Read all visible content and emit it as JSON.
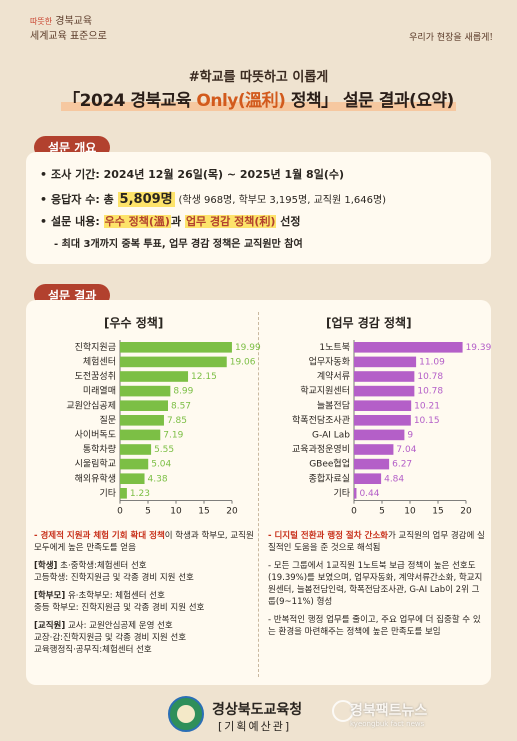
{
  "header": {
    "slogan_left_prefix": "따뜻한",
    "slogan_left_line1": "경북교육",
    "slogan_left_line2": "세계교육 표준으로",
    "slogan_right": "우리가 현장을 새롭게!",
    "subtitle": "#학교를 따뜻하고 이롭게",
    "title_open": "「2024 경북교육 ",
    "title_accent": "Only(溫利)",
    "title_rest": " 정책」 설문 결과(요약)"
  },
  "overview": {
    "label": "설문 개요",
    "period_label": "조사 기간:",
    "period_value": "2024년 12월 26일(목) ~ 2025년 1월 8일(수)",
    "respondents_label": "응답자 수: 총",
    "respondents_total": "5,809명",
    "respondents_detail": "(학생 968명, 학부모 3,195명, 교직원 1,646명)",
    "content_label": "설문 내용:",
    "content_a": "우수 정책(溫)",
    "content_mid": "과",
    "content_b": "업무 경감 정책(利)",
    "content_end": "선정",
    "note": "- 최대 3개까지 중복 투표, 업무 경감 정책은 교직원만 참여"
  },
  "results": {
    "label": "설문 결과"
  },
  "chart_data": [
    {
      "type": "bar",
      "title": "[우수 정책]",
      "categories": [
        "진학지원금",
        "체험센터",
        "도전꿈성취",
        "미래열매",
        "교원안심공제",
        "질문",
        "사이버독도",
        "통학차량",
        "시울림학교",
        "해외유학생",
        "기타"
      ],
      "values": [
        19.99,
        19.06,
        12.15,
        8.99,
        8.57,
        7.85,
        7.19,
        5.55,
        5.04,
        4.38,
        1.23
      ],
      "value_labels": [
        "19.99",
        "19.06",
        "12.15",
        "8.99",
        "8.57",
        "7.85",
        "7.19",
        "5.55",
        "5.04",
        "4.38",
        "1.23"
      ],
      "xlim": [
        0,
        20
      ],
      "ticks": [
        "0",
        "5",
        "10",
        "15",
        "20"
      ],
      "color": "#7cbf45"
    },
    {
      "type": "bar",
      "title": "[업무 경감 정책]",
      "categories": [
        "1노트북",
        "업무자동화",
        "계약서류",
        "학교지원센터",
        "늘봄전담",
        "학폭전담조사관",
        "G-AI Lab",
        "교육과정운영비",
        "GBee협업",
        "종합자료실",
        "기타"
      ],
      "values": [
        19.39,
        11.09,
        10.78,
        10.78,
        10.21,
        10.15,
        9,
        7.04,
        6.27,
        4.84,
        0.44
      ],
      "value_labels": [
        "19.39",
        "11.09",
        "10.78",
        "10.78",
        "10.21",
        "10.15",
        "9",
        "7.04",
        "6.27",
        "4.84",
        "0.44"
      ],
      "xlim": [
        0,
        20
      ],
      "ticks": [
        "0",
        "5",
        "10",
        "15",
        "20"
      ],
      "color": "#b45fc8"
    }
  ],
  "notes_left": {
    "n1_red": "- 경제적 지원과 체험 기회 확대 정책",
    "n1_rest": "이 학생과 학부모, 교직원 모두에게 높은 만족도를 얻음",
    "n2_tag": "[학생]",
    "n2_l1": "초·중학생:체험센터 선호",
    "n2_l2": "고등학생: 진학지원금 및 각종 경비 지원 선호",
    "n3_tag": "[학부모]",
    "n3_l1": "유·초학부모: 체험센터 선호",
    "n3_l2": "중등 학부모: 진학지원금 및 각종 경비 지원 선호",
    "n4_tag": "[교직원]",
    "n4_l1": "교사: 교원안심공제 운영 선호",
    "n4_l2": "교장·감:진학지원금 및 각종 경비 지원 선호",
    "n4_l3": "교육행정직·공무직:체험센터 선호"
  },
  "notes_right": {
    "n1_red": "- 디지털 전환과 행정 절차 간소화",
    "n1_rest": "가 교직원의 업무 경감에 실질적인 도움을 준 것으로 해석됨",
    "n2": "- 모든 그룹에서 1교직원 1노트북 보급 정책이 높은 선호도(19.39%)를 보였으며, 업무자동화, 계약서류간소화, 학교지원센터, 늘봄전담인력, 학폭전담조사관, G-AI Lab이 2위 그룹(9~11%) 형성",
    "n3": "- 반복적인 행정 업무를 줄이고, 주요 업무에 더 집중할 수 있는 환경을 마련해주는 정책에 높은 만족도를 보임"
  },
  "footer": {
    "org": "경상북도교육청",
    "dept": "[기획예산관]",
    "watermark": "경북팩트뉴스",
    "watermark_url": "kyeongbuk fact news"
  }
}
